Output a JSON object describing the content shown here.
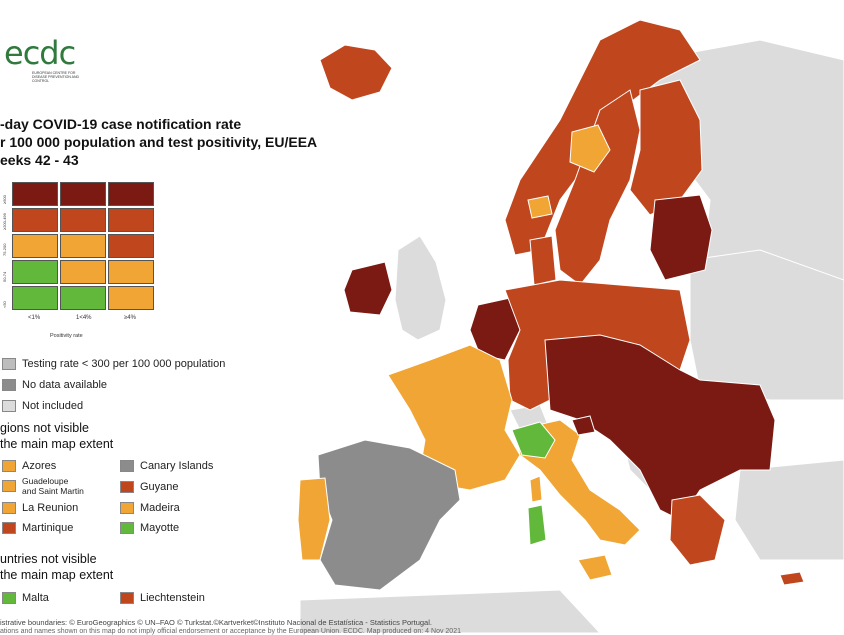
{
  "logo": {
    "text": "ecdc",
    "subtitle": "EUROPEAN CENTRE FOR DISEASE PREVENTION AND CONTROL"
  },
  "title": {
    "line1": "-day COVID-19 case notification rate",
    "line2": "r 100 000 population and test positivity, EU/EEA",
    "line3": "eeks 42 - 43"
  },
  "colors": {
    "dark_red": "#7a1a12",
    "red": "#c0461e",
    "orange": "#f0a534",
    "green": "#62b83a",
    "grey": "#8c8c8c",
    "light_grey": "#bdbdbd",
    "not_included": "#dcdcdc",
    "sea": "#ffffff"
  },
  "matrix": {
    "rows": [
      {
        "label": "≥500",
        "cells": [
          "dark_red",
          "dark_red",
          "dark_red"
        ]
      },
      {
        "label": "≥200-499",
        "cells": [
          "red",
          "red",
          "red"
        ]
      },
      {
        "label": "75-200",
        "cells": [
          "orange",
          "orange",
          "red"
        ]
      },
      {
        "label": "50-74",
        "cells": [
          "green",
          "orange",
          "orange"
        ]
      },
      {
        "label": "<50",
        "cells": [
          "green",
          "green",
          "orange"
        ]
      }
    ],
    "x_labels": [
      "<1%",
      "1<4%",
      "≥4%"
    ],
    "x_title": "Positivity rate"
  },
  "legend": {
    "testing": "Testing rate < 300 per 100 000 population",
    "no_data": "No data available",
    "not_included": "Not included"
  },
  "regions": {
    "title1": "gions not visible",
    "title2": "the main map extent",
    "azores": "Azores",
    "guadeloupe1": "Guadeloupe",
    "guadeloupe2": "and Saint Martin",
    "la_reunion": "La Reunion",
    "martinique": "Martinique",
    "canary": "Canary Islands",
    "guyane": "Guyane",
    "madeira": "Madeira",
    "mayotte": "Mayotte"
  },
  "countries": {
    "title1": "untries not visible",
    "title2": "the main map extent",
    "malta": "Malta",
    "liechtenstein": "Liechtenstein"
  },
  "credit": "istrative boundaries: © EuroGeographics © UN–FAO © Turkstat.©Kartverket©Instituto Nacional de Estatística - Statistics Portugal.",
  "credit2": "ations and names shown on this map do not imply official endorsement or acceptance by the European Union. ECDC. Map produced on: 4 Nov 2021"
}
